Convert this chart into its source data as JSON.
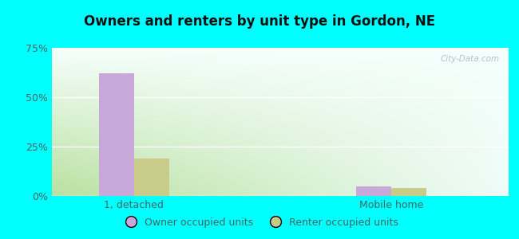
{
  "title": "Owners and renters by unit type in Gordon, NE",
  "categories": [
    "1, detached",
    "Mobile home"
  ],
  "owner_values": [
    62.0,
    5.0
  ],
  "renter_values": [
    19.0,
    4.0
  ],
  "owner_color": "#c8a8d8",
  "renter_color": "#c8cc88",
  "ylim": [
    0,
    75
  ],
  "yticks": [
    0,
    25,
    50,
    75
  ],
  "ytick_labels": [
    "0%",
    "25%",
    "50%",
    "75%"
  ],
  "owner_label": "Owner occupied units",
  "renter_label": "Renter occupied units",
  "watermark": "City-Data.com",
  "bg_color": "#00ffff",
  "gradient_left": "#c8e8b0",
  "gradient_right": "#eaf8f8"
}
